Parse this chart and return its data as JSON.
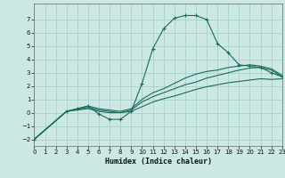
{
  "background_color": "#cce8e4",
  "grid_color": "#aad0cc",
  "line_color": "#1a6b5a",
  "xlabel": "Humidex (Indice chaleur)",
  "xlim": [
    0,
    23
  ],
  "ylim": [
    -2.5,
    8.2
  ],
  "yticks": [
    -2,
    -1,
    0,
    1,
    2,
    3,
    4,
    5,
    6,
    7
  ],
  "xticks": [
    0,
    1,
    2,
    3,
    4,
    5,
    6,
    7,
    8,
    9,
    10,
    11,
    12,
    13,
    14,
    15,
    16,
    17,
    18,
    19,
    20,
    21,
    22,
    23
  ],
  "line1_x": [
    0,
    3,
    4,
    5,
    6,
    7,
    8,
    9,
    10,
    11,
    12,
    13,
    14,
    15,
    16,
    17,
    18,
    19,
    20,
    21,
    22,
    23
  ],
  "line1_y": [
    -2,
    0.1,
    0.3,
    0.5,
    -0.1,
    -0.5,
    -0.5,
    0.1,
    2.2,
    4.8,
    6.3,
    7.1,
    7.3,
    7.3,
    7.0,
    5.2,
    4.5,
    3.6,
    3.5,
    3.4,
    3.0,
    2.7
  ],
  "line2_x": [
    0,
    3,
    5,
    6,
    7,
    8,
    9,
    10,
    11,
    12,
    13,
    14,
    15,
    16,
    17,
    18,
    19,
    20,
    21,
    22,
    23
  ],
  "line2_y": [
    -2,
    0.1,
    0.4,
    0.2,
    0.1,
    0.0,
    0.2,
    0.8,
    1.2,
    1.5,
    1.8,
    2.1,
    2.3,
    2.6,
    2.8,
    3.0,
    3.2,
    3.35,
    3.4,
    3.2,
    2.7
  ],
  "line3_x": [
    0,
    3,
    5,
    6,
    7,
    8,
    9,
    10,
    11,
    12,
    13,
    14,
    15,
    16,
    17,
    18,
    19,
    20,
    21,
    22,
    23
  ],
  "line3_y": [
    -2,
    0.1,
    0.3,
    0.1,
    0.0,
    0.0,
    0.1,
    0.45,
    0.8,
    1.05,
    1.25,
    1.5,
    1.75,
    1.95,
    2.1,
    2.25,
    2.35,
    2.45,
    2.55,
    2.5,
    2.55
  ],
  "line4_x": [
    0,
    3,
    5,
    6,
    7,
    8,
    9,
    10,
    11,
    12,
    13,
    14,
    15,
    16,
    17,
    18,
    19,
    20,
    21,
    22,
    23
  ],
  "line4_y": [
    -2,
    0.1,
    0.5,
    0.3,
    0.2,
    0.1,
    0.3,
    1.0,
    1.5,
    1.8,
    2.2,
    2.6,
    2.9,
    3.1,
    3.2,
    3.4,
    3.5,
    3.6,
    3.5,
    3.3,
    2.8
  ],
  "tick_fontsize": 5.0,
  "xlabel_fontsize": 6.0
}
